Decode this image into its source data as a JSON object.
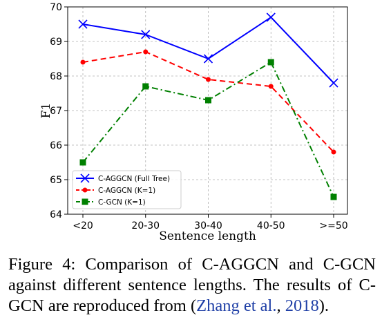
{
  "chart_data": {
    "type": "line",
    "categories": [
      "<20",
      "20-30",
      "30-40",
      "40-50",
      ">=50"
    ],
    "xlabel": "Sentence length",
    "ylabel": "F1",
    "ylim": [
      64,
      70
    ],
    "yticks": [
      64,
      65,
      66,
      67,
      68,
      69,
      70
    ],
    "grid": true,
    "legend_position": "lower-left",
    "series": [
      {
        "name": "C-AGGCN (Full Tree)",
        "values": [
          69.5,
          69.2,
          68.5,
          69.7,
          67.8
        ],
        "color": "#0000ff",
        "marker": "x",
        "line": "solid"
      },
      {
        "name": "C-AGGCN (K=1)",
        "values": [
          68.4,
          68.7,
          67.9,
          67.7,
          65.8
        ],
        "color": "#ff0000",
        "marker": "circle",
        "line": "dashed"
      },
      {
        "name": "C-GCN (K=1)",
        "values": [
          65.5,
          67.7,
          67.3,
          68.4,
          64.5
        ],
        "color": "#008000",
        "marker": "square",
        "line": "dashdot"
      }
    ]
  },
  "caption": {
    "text": "Figure 4: Comparison of C-AGGCN and C-GCN against different sentence lengths. The results of C-GCN are reproduced from ",
    "cite_authors": "Zhang et al.",
    "cite_sep": ", ",
    "cite_year": "2018",
    "open_paren": "(",
    "close_paren": ")."
  }
}
